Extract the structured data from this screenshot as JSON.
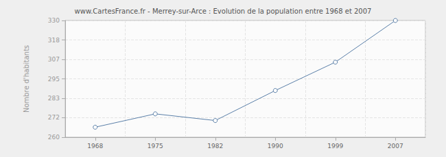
{
  "chart_data": {
    "type": "line",
    "title": "www.CartesFrance.fr - Merrey-sur-Arce : Evolution de la population entre 1968 et 2007",
    "y_label": "Nombre d'habitants",
    "categories": [
      "1968",
      "1975",
      "1982",
      "1990",
      "1999",
      "2007"
    ],
    "values": [
      266,
      274,
      270,
      288,
      305,
      330
    ],
    "color": "#5a7fa8",
    "marker": "circle",
    "ylim": [
      260,
      330
    ],
    "yticks": [
      260,
      {
        "value": 271.67,
        "label": "272"
      },
      {
        "value": 283.33,
        "label": "283"
      },
      295,
      {
        "value": 306.67,
        "label": "307"
      },
      {
        "value": 318.33,
        "label": "318"
      },
      330
    ],
    "grid": true
  }
}
